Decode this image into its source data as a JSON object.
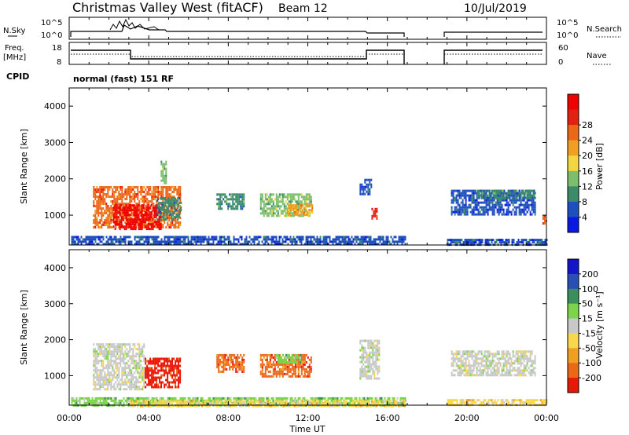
{
  "header": {
    "station": "Christmas Valley West (fitACF)",
    "beam": "Beam 12",
    "date": "10/Jul/2019"
  },
  "sky_panel": {
    "left_label": "N.Sky",
    "right_label": "N.Search",
    "left_ticks": [
      "10^5",
      "10^0"
    ],
    "right_ticks": [
      "10^5",
      "10^0"
    ]
  },
  "freq_panel": {
    "left_label_1": "Freq.",
    "left_label_2": "[MHz]",
    "right_label": "Nave",
    "left_ticks": [
      "18",
      "8"
    ],
    "right_ticks": [
      "60",
      "0"
    ]
  },
  "cpid": {
    "label": "CPID",
    "mode": "normal (fast) 151 RF"
  },
  "x_axis": {
    "label": "Time UT",
    "ticks": [
      "00:00",
      "04:00",
      "08:00",
      "12:00",
      "16:00",
      "20:00",
      "00:00"
    ]
  },
  "chart_data": [
    {
      "type": "heatmap",
      "name": "power",
      "ylabel": "Slant Range [km]",
      "ylim": [
        180,
        4500
      ],
      "yticks": [
        "1000",
        "2000",
        "3000",
        "4000"
      ],
      "xlim_hours": [
        0,
        24
      ],
      "colorbar_label": "Power [dB]",
      "colorbar_ticks": [
        "4",
        "8",
        "12",
        "16",
        "20",
        "24",
        "28"
      ],
      "colors": [
        "#0a18e6",
        "#1e4fbf",
        "#3b8a6a",
        "#7bbf6e",
        "#f4d63e",
        "#f0a020",
        "#ec6818",
        "#e62010",
        "#f00000"
      ],
      "regions": [
        {
          "t0": 1.2,
          "t1": 5.6,
          "r0": 650,
          "r1": 1800,
          "c": 6
        },
        {
          "t0": 2.2,
          "t1": 4.6,
          "r0": 650,
          "r1": 1300,
          "c": 8
        },
        {
          "t0": 4.4,
          "t1": 5.6,
          "r0": 900,
          "r1": 1500,
          "c": 2
        },
        {
          "t0": 4.6,
          "t1": 4.9,
          "r0": 1900,
          "r1": 2500,
          "c": 3
        },
        {
          "t0": 7.4,
          "t1": 8.8,
          "r0": 1200,
          "r1": 1600,
          "c": 2
        },
        {
          "t0": 9.6,
          "t1": 12.2,
          "r0": 1000,
          "r1": 1600,
          "c": 3
        },
        {
          "t0": 11.0,
          "t1": 12.2,
          "r0": 1000,
          "r1": 1300,
          "c": 5
        },
        {
          "t0": 14.6,
          "t1": 15.2,
          "r0": 1600,
          "r1": 2000,
          "c": 1
        },
        {
          "t0": 15.2,
          "t1": 15.5,
          "r0": 900,
          "r1": 1200,
          "c": 7
        },
        {
          "t0": 19.2,
          "t1": 23.4,
          "r0": 1000,
          "r1": 1700,
          "c": 1
        },
        {
          "t0": 20.5,
          "t1": 23.4,
          "r0": 1500,
          "r1": 1700,
          "c": 2
        },
        {
          "t0": 23.8,
          "t1": 24.0,
          "r0": 750,
          "r1": 1000,
          "c": 6
        },
        {
          "t0": 0.1,
          "t1": 16.9,
          "r0": 180,
          "r1": 430,
          "c": 1
        },
        {
          "t0": 19.0,
          "t1": 24.0,
          "r0": 180,
          "r1": 350,
          "c": 1
        }
      ]
    },
    {
      "type": "heatmap",
      "name": "velocity",
      "ylabel": "Slant Range [km]",
      "ylim": [
        180,
        4500
      ],
      "yticks": [
        "1000",
        "2000",
        "3000",
        "4000"
      ],
      "xlim_hours": [
        0,
        24
      ],
      "colorbar_label": "Velocity [m s⁻¹]",
      "colorbar_ticks": [
        "200",
        "100",
        "50",
        "15",
        "-15",
        "-50",
        "-100",
        "-200"
      ],
      "colors": [
        "#1414c8",
        "#2a4fb4",
        "#3a8f5a",
        "#7cd44a",
        "#c8c8c8",
        "#f8d84a",
        "#f0a020",
        "#ec6818",
        "#e81808"
      ],
      "regions": [
        {
          "t0": 1.2,
          "t1": 3.8,
          "r0": 600,
          "r1": 1900,
          "c": 4
        },
        {
          "t0": 3.8,
          "t1": 5.6,
          "r0": 700,
          "r1": 1500,
          "c": 8
        },
        {
          "t0": 7.4,
          "t1": 8.8,
          "r0": 1100,
          "r1": 1600,
          "c": 7
        },
        {
          "t0": 9.6,
          "t1": 12.2,
          "r0": 1000,
          "r1": 1600,
          "c": 7
        },
        {
          "t0": 10.4,
          "t1": 11.6,
          "r0": 1400,
          "r1": 1600,
          "c": 3
        },
        {
          "t0": 14.6,
          "t1": 15.6,
          "r0": 900,
          "r1": 2000,
          "c": 4
        },
        {
          "t0": 19.2,
          "t1": 23.4,
          "r0": 1000,
          "r1": 1700,
          "c": 4
        },
        {
          "t0": 0.1,
          "t1": 16.9,
          "r0": 180,
          "r1": 400,
          "c": 3
        },
        {
          "t0": 3.0,
          "t1": 16.9,
          "r0": 180,
          "r1": 320,
          "c": 5
        },
        {
          "t0": 19.0,
          "t1": 24.0,
          "r0": 180,
          "r1": 350,
          "c": 5
        }
      ]
    }
  ]
}
